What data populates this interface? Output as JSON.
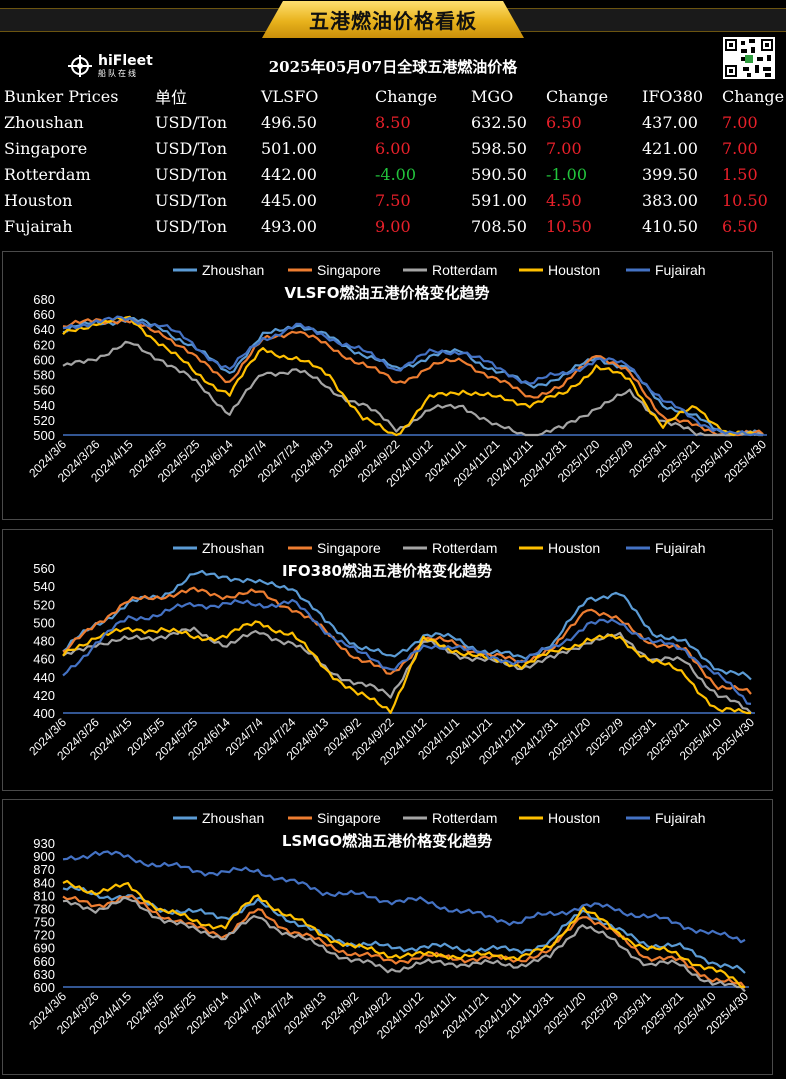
{
  "banner": {
    "title": "五港燃油价格看板"
  },
  "logo": {
    "name": "hiFleet",
    "subtitle": "船队在线"
  },
  "prices": {
    "caption": "2025年05月07日全球五港燃油价格",
    "headers": [
      "Bunker Prices",
      "单位",
      "VLSFO",
      "Change",
      "MGO",
      "Change",
      "IFO380",
      "Change"
    ],
    "rows": [
      {
        "port": "Zhoushan",
        "unit": "USD/Ton",
        "vlsfo": "496.50",
        "vlsfo_change": "8.50",
        "vlsfo_dir": "up",
        "mgo": "632.50",
        "mgo_change": "6.50",
        "mgo_dir": "up",
        "ifo380": "437.00",
        "ifo380_change": "7.00",
        "ifo380_dir": "up"
      },
      {
        "port": "Singapore",
        "unit": "USD/Ton",
        "vlsfo": "501.00",
        "vlsfo_change": "6.00",
        "vlsfo_dir": "up",
        "mgo": "598.50",
        "mgo_change": "7.00",
        "mgo_dir": "up",
        "ifo380": "421.00",
        "ifo380_change": "7.00",
        "ifo380_dir": "up"
      },
      {
        "port": "Rotterdam",
        "unit": "USD/Ton",
        "vlsfo": "442.00",
        "vlsfo_change": "-4.00",
        "vlsfo_dir": "down",
        "mgo": "590.50",
        "mgo_change": "-1.00",
        "mgo_dir": "down",
        "ifo380": "399.50",
        "ifo380_change": "1.50",
        "ifo380_dir": "up"
      },
      {
        "port": "Houston",
        "unit": "USD/Ton",
        "vlsfo": "445.00",
        "vlsfo_change": "7.50",
        "vlsfo_dir": "up",
        "mgo": "591.00",
        "mgo_change": "4.50",
        "mgo_dir": "up",
        "ifo380": "383.00",
        "ifo380_change": "10.50",
        "ifo380_dir": "up"
      },
      {
        "port": "Fujairah",
        "unit": "USD/Ton",
        "vlsfo": "493.00",
        "vlsfo_change": "9.00",
        "vlsfo_dir": "up",
        "mgo": "708.50",
        "mgo_change": "10.50",
        "mgo_dir": "up",
        "ifo380": "410.50",
        "ifo380_change": "6.50",
        "ifo380_dir": "up"
      }
    ]
  },
  "colors": {
    "up": "#e8202a",
    "down": "#22c43c",
    "accent": "#e8b21c",
    "Zhoushan": "#5b9bd5",
    "Singapore": "#ed7d31",
    "Rotterdam": "#a5a5a5",
    "Houston": "#ffc000",
    "Fujairah": "#4472c4"
  },
  "chart_data": [
    {
      "type": "line",
      "title": "VLSFO燃油五港价格变化趋势",
      "legend_position": "top",
      "grid": false,
      "ylim": [
        500,
        680
      ],
      "yticks": [
        500,
        520,
        540,
        560,
        580,
        600,
        620,
        640,
        660,
        680
      ],
      "x_labels": [
        "2024/3/6",
        "2024/3/26",
        "2024/4/15",
        "2024/5/5",
        "2024/5/25",
        "2024/6/14",
        "2024/7/4",
        "2024/7/24",
        "2024/8/13",
        "2024/9/2",
        "2024/9/22",
        "2024/10/12",
        "2024/11/1",
        "2024/11/21",
        "2024/12/11",
        "2024/12/31",
        "2025/1/20",
        "2025/2/9",
        "2025/3/1",
        "2025/3/21",
        "2025/4/10",
        "2025/4/30"
      ],
      "series": [
        {
          "name": "Zhoushan",
          "values": [
            636,
            650,
            652,
            642,
            612,
            584,
            630,
            648,
            628,
            608,
            586,
            605,
            610,
            584,
            566,
            576,
            605,
            585,
            542,
            522,
            500,
            501
          ]
        },
        {
          "name": "Singapore",
          "values": [
            640,
            655,
            648,
            636,
            600,
            572,
            625,
            640,
            615,
            595,
            568,
            590,
            600,
            572,
            552,
            563,
            610,
            580,
            526,
            510,
            500,
            501
          ]
        },
        {
          "name": "Rotterdam",
          "values": [
            588,
            604,
            620,
            600,
            568,
            530,
            580,
            588,
            560,
            540,
            508,
            532,
            540,
            510,
            500,
            508,
            538,
            555,
            520,
            500,
            500,
            500
          ]
        },
        {
          "name": "Houston",
          "values": [
            632,
            650,
            652,
            620,
            580,
            555,
            615,
            600,
            580,
            520,
            500,
            548,
            560,
            548,
            542,
            552,
            592,
            572,
            512,
            538,
            500,
            500
          ]
        },
        {
          "name": "Fujairah",
          "values": [
            640,
            652,
            652,
            646,
            616,
            586,
            628,
            644,
            630,
            610,
            588,
            608,
            612,
            588,
            570,
            580,
            600,
            592,
            545,
            520,
            500,
            500
          ]
        }
      ]
    },
    {
      "type": "line",
      "title": "IFO380燃油五港价格变化趋势",
      "legend_position": "top",
      "grid": false,
      "ylim": [
        400,
        560
      ],
      "yticks": [
        400,
        420,
        440,
        460,
        480,
        500,
        520,
        540,
        560
      ],
      "x_labels": [
        "2024/3/6",
        "2024/3/26",
        "2024/4/15",
        "2024/5/5",
        "2024/5/25",
        "2024/6/14",
        "2024/7/4",
        "2024/7/24",
        "2024/8/13",
        "2024/9/2",
        "2024/9/22",
        "2024/10/12",
        "2024/11/1",
        "2024/11/21",
        "2024/12/11",
        "2024/12/31",
        "2025/1/20",
        "2025/2/9",
        "2025/3/1",
        "2025/3/21",
        "2025/4/10",
        "2025/4/30"
      ],
      "series": [
        {
          "name": "Zhoushan",
          "values": [
            468,
            498,
            520,
            530,
            552,
            552,
            542,
            540,
            500,
            475,
            460,
            486,
            482,
            466,
            462,
            476,
            528,
            530,
            490,
            476,
            450,
            437
          ]
        },
        {
          "name": "Singapore",
          "values": [
            464,
            500,
            522,
            530,
            534,
            530,
            532,
            516,
            490,
            460,
            442,
            480,
            478,
            462,
            458,
            470,
            518,
            500,
            478,
            468,
            430,
            421
          ]
        },
        {
          "name": "Rotterdam",
          "values": [
            460,
            478,
            480,
            486,
            490,
            476,
            488,
            478,
            450,
            432,
            420,
            478,
            466,
            456,
            452,
            460,
            480,
            484,
            460,
            456,
            420,
            400
          ]
        },
        {
          "name": "Houston",
          "values": [
            462,
            486,
            490,
            494,
            482,
            486,
            500,
            486,
            450,
            420,
            404,
            480,
            470,
            458,
            454,
            466,
            482,
            482,
            458,
            442,
            402,
            400
          ]
        },
        {
          "name": "Fujairah",
          "values": [
            440,
            478,
            504,
            510,
            520,
            520,
            520,
            522,
            492,
            466,
            450,
            470,
            476,
            460,
            458,
            472,
            498,
            500,
            478,
            470,
            440,
            410
          ]
        }
      ]
    },
    {
      "type": "line",
      "title": "LSMGO燃油五港价格变化趋势",
      "legend_position": "top",
      "grid": false,
      "ylim": [
        600,
        930
      ],
      "yticks": [
        600,
        630,
        660,
        690,
        720,
        750,
        780,
        810,
        840,
        870,
        900,
        930
      ],
      "x_labels": [
        "2024/3/6",
        "2024/3/26",
        "2024/4/15",
        "2024/5/5",
        "2024/5/25",
        "2024/6/14",
        "2024/7/4",
        "2024/7/24",
        "2024/8/13",
        "2024/9/2",
        "2024/9/22",
        "2024/10/12",
        "2024/11/1",
        "2024/11/21",
        "2024/12/11",
        "2024/12/31",
        "2025/1/20",
        "2025/2/9",
        "2025/3/1",
        "2025/3/21",
        "2025/4/10",
        "2025/4/30"
      ],
      "series": [
        {
          "name": "Zhoushan",
          "values": [
            826,
            812,
            806,
            780,
            770,
            762,
            792,
            756,
            716,
            700,
            690,
            692,
            690,
            686,
            684,
            700,
            780,
            730,
            700,
            690,
            660,
            632
          ]
        },
        {
          "name": "Singapore",
          "values": [
            800,
            790,
            804,
            768,
            736,
            720,
            774,
            730,
            700,
            676,
            660,
            668,
            668,
            664,
            664,
            680,
            770,
            720,
            670,
            658,
            620,
            598
          ]
        },
        {
          "name": "Rotterdam",
          "values": [
            790,
            780,
            798,
            760,
            730,
            716,
            760,
            720,
            690,
            660,
            640,
            652,
            656,
            652,
            652,
            666,
            748,
            700,
            654,
            650,
            610,
            590
          ]
        },
        {
          "name": "Houston",
          "values": [
            836,
            820,
            830,
            780,
            750,
            740,
            810,
            760,
            720,
            690,
            676,
            672,
            674,
            670,
            672,
            686,
            784,
            726,
            690,
            672,
            640,
            600
          ]
        },
        {
          "name": "Fujairah",
          "values": [
            890,
            910,
            896,
            880,
            868,
            862,
            868,
            840,
            820,
            810,
            800,
            796,
            780,
            760,
            750,
            766,
            786,
            780,
            760,
            746,
            720,
            708
          ]
        }
      ]
    }
  ]
}
